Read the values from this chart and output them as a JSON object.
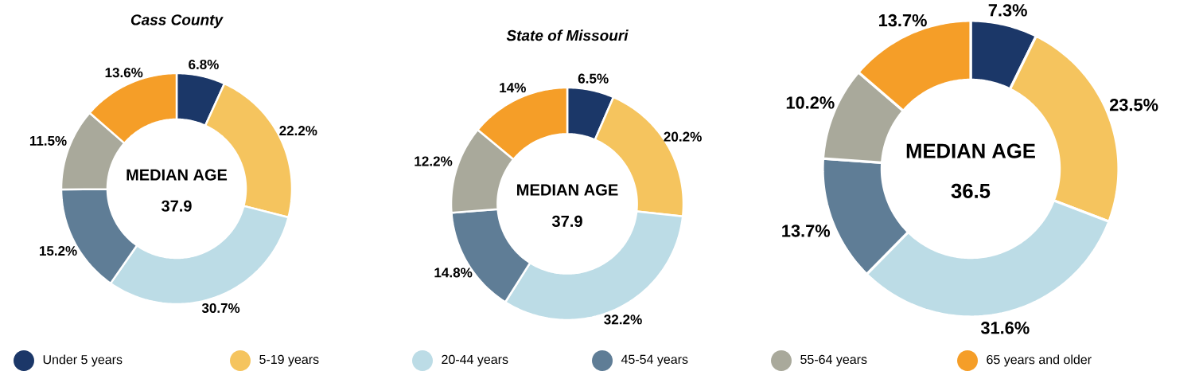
{
  "chart_data": [
    {
      "type": "donut",
      "title": "Cass County",
      "categories": [
        "Under 5 years",
        "5-19 years",
        "20-44 years",
        "45-54 years",
        "55-64 years",
        "65 years and older"
      ],
      "values": [
        6.8,
        22.2,
        30.7,
        15.2,
        11.5,
        13.6
      ],
      "value_labels": [
        "6.8%",
        "22.2%",
        "30.7%",
        "15.2%",
        "11.5%",
        "13.6%"
      ],
      "colors": [
        "#1b3768",
        "#f5c45e",
        "#bcdce6",
        "#5f7d96",
        "#a9a99b",
        "#f59e28"
      ],
      "annotations": [
        "MEDIAN AGE",
        "37.9"
      ],
      "legend": "bottom"
    },
    {
      "type": "donut",
      "title": "State of Missouri",
      "categories": [
        null,
        null,
        null,
        null,
        null,
        null
      ],
      "values": [
        6.5,
        20.2,
        32.2,
        14.8,
        12.2,
        14
      ],
      "value_labels": [
        "6.5%",
        "20.2%",
        "32.2%",
        "14.8%",
        "12.2%",
        "14%"
      ],
      "colors": [
        "#1b3768",
        "#f5c45e",
        "#bcdce6",
        "#5f7d96",
        "#a9a99b",
        "#f59e28"
      ],
      "annotations": [
        "MEDIAN AGE",
        "37.9"
      ]
    },
    {
      "type": "donut",
      "categories": [
        null,
        null,
        null,
        null,
        null,
        null
      ],
      "values": [
        7.3,
        23.5,
        31.6,
        13.7,
        10.2,
        13.7
      ],
      "value_labels": [
        "7.3%",
        "23.5%",
        "31.6%",
        "13.7%",
        "10.2%",
        "13.7%"
      ],
      "colors": [
        "#1b3768",
        "#f5c45e",
        "#bcdce6",
        "#5f7d96",
        "#a9a99b",
        "#f59e28"
      ],
      "annotations": [
        "MEDIAN AGE",
        "36.5"
      ]
    }
  ]
}
